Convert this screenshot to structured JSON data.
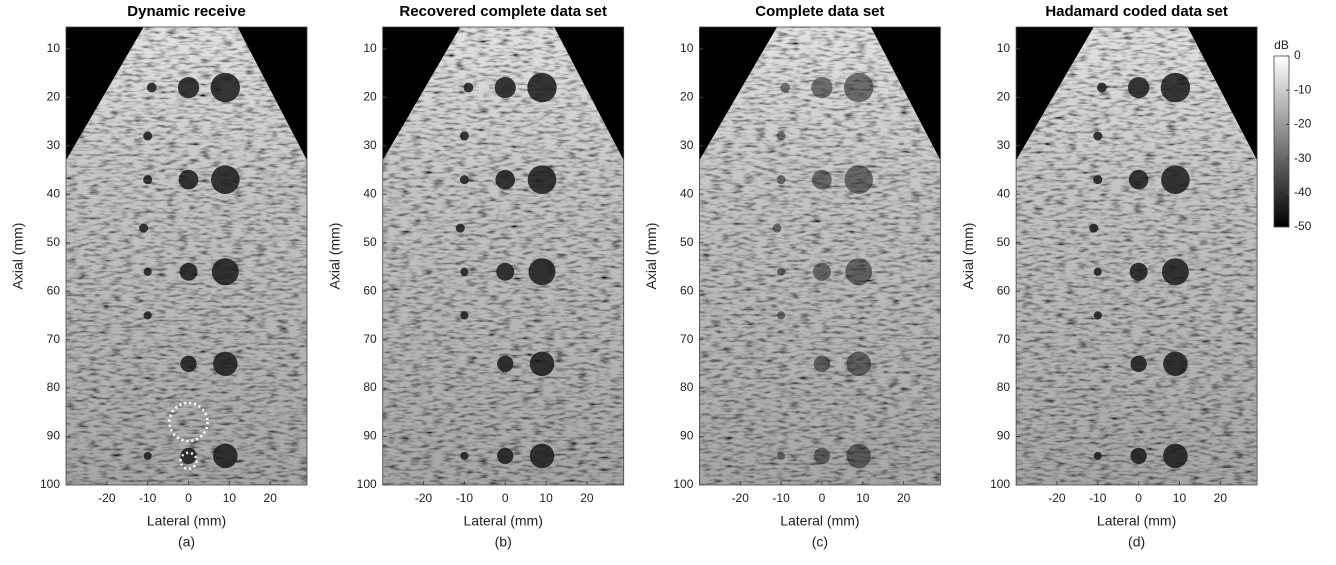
{
  "chart_data": [
    {
      "type": "image",
      "title": "Dynamic receive",
      "xlabel": "Lateral (mm)",
      "ylabel": "Axial (mm)",
      "caption": "(a)",
      "xlim": [
        -30,
        29
      ],
      "ylim": [
        5.5,
        100
      ],
      "xticks": [
        -20,
        -10,
        0,
        10,
        20
      ],
      "yticks": [
        10,
        20,
        30,
        40,
        50,
        60,
        70,
        80,
        90,
        100
      ]
    },
    {
      "type": "image",
      "title": "Recovered complete data set",
      "xlabel": "Lateral (mm)",
      "ylabel": "Axial (mm)",
      "caption": "(b)",
      "xlim": [
        -30,
        29
      ],
      "ylim": [
        5.5,
        100
      ],
      "xticks": [
        -20,
        -10,
        0,
        10,
        20
      ],
      "yticks": [
        10,
        20,
        30,
        40,
        50,
        60,
        70,
        80,
        90,
        100
      ]
    },
    {
      "type": "image",
      "title": "Complete data set",
      "xlabel": "Lateral (mm)",
      "ylabel": "Axial (mm)",
      "caption": "(c)",
      "xlim": [
        -30,
        29
      ],
      "ylim": [
        5.5,
        100
      ],
      "xticks": [
        -20,
        -10,
        0,
        10,
        20
      ],
      "yticks": [
        10,
        20,
        30,
        40,
        50,
        60,
        70,
        80,
        90,
        100
      ]
    },
    {
      "type": "image",
      "title": "Hadamard coded data set",
      "xlabel": "Lateral (mm)",
      "ylabel": "Axial (mm)",
      "caption": "(d)",
      "xlim": [
        -30,
        29
      ],
      "ylim": [
        5.5,
        100
      ],
      "xticks": [
        -20,
        -10,
        0,
        10,
        20
      ],
      "yticks": [
        10,
        20,
        30,
        40,
        50,
        60,
        70,
        80,
        90,
        100
      ]
    },
    {
      "type": "colorbar",
      "label": "dB",
      "ylim": [
        -50,
        0
      ],
      "yticks": [
        0,
        -10,
        -20,
        -30,
        -40,
        -50
      ]
    }
  ]
}
